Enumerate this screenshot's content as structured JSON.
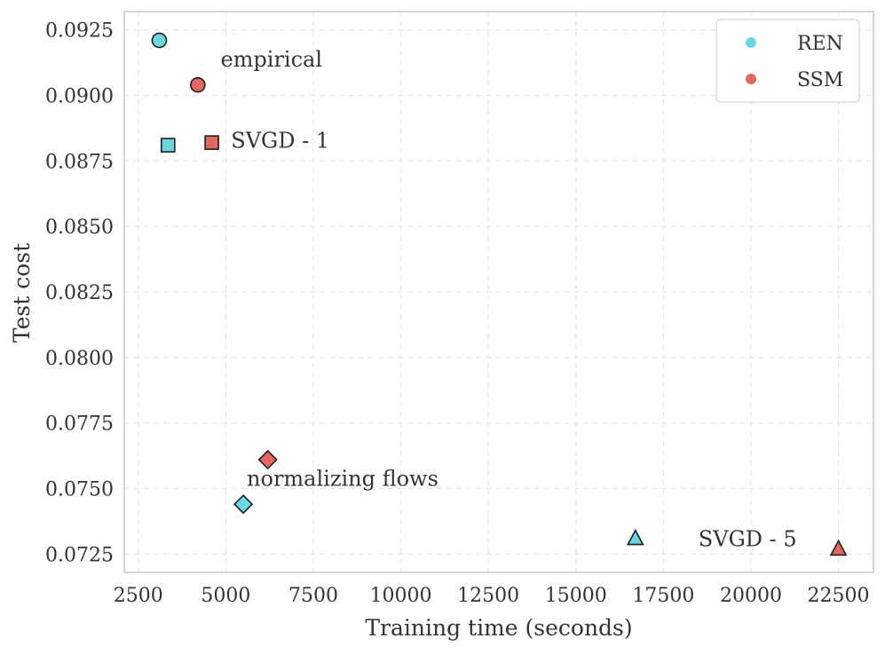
{
  "chart_data": {
    "type": "scatter",
    "xlabel": "Training time (seconds)",
    "ylabel": "Test cost",
    "xlim": [
      2100,
      23500
    ],
    "ylim": [
      0.0718,
      0.0932
    ],
    "grid": true,
    "legend_position": "top-right",
    "x_ticks": [
      {
        "value": 2500,
        "label": "2500"
      },
      {
        "value": 5000,
        "label": "5000"
      },
      {
        "value": 7500,
        "label": "7500"
      },
      {
        "value": 10000,
        "label": "10000"
      },
      {
        "value": 12500,
        "label": "12500"
      },
      {
        "value": 15000,
        "label": "15000"
      },
      {
        "value": 17500,
        "label": "17500"
      },
      {
        "value": 20000,
        "label": "20000"
      },
      {
        "value": 22500,
        "label": "22500"
      }
    ],
    "y_ticks": [
      {
        "value": 0.0725,
        "label": "0.0725"
      },
      {
        "value": 0.075,
        "label": "0.0750"
      },
      {
        "value": 0.0775,
        "label": "0.0775"
      },
      {
        "value": 0.08,
        "label": "0.0800"
      },
      {
        "value": 0.0825,
        "label": "0.0825"
      },
      {
        "value": 0.085,
        "label": "0.0850"
      },
      {
        "value": 0.0875,
        "label": "0.0875"
      },
      {
        "value": 0.09,
        "label": "0.0900"
      },
      {
        "value": 0.0925,
        "label": "0.0925"
      }
    ],
    "series": [
      {
        "name": "REN",
        "color": "#6dd7e0",
        "points": [
          {
            "method": "empirical",
            "marker": "circle",
            "x": 3100,
            "y": 0.0921
          },
          {
            "method": "SVGD - 1",
            "marker": "square",
            "x": 3350,
            "y": 0.0881
          },
          {
            "method": "normalizing flows",
            "marker": "diamond",
            "x": 5500,
            "y": 0.0744
          },
          {
            "method": "SVGD - 5",
            "marker": "triangle",
            "x": 16700,
            "y": 0.0731
          }
        ]
      },
      {
        "name": "SSM",
        "color": "#e0685f",
        "points": [
          {
            "method": "empirical",
            "marker": "circle",
            "x": 4200,
            "y": 0.0904
          },
          {
            "method": "SVGD - 1",
            "marker": "square",
            "x": 4600,
            "y": 0.0882
          },
          {
            "method": "normalizing flows",
            "marker": "diamond",
            "x": 6200,
            "y": 0.0761
          },
          {
            "method": "SVGD - 5",
            "marker": "triangle",
            "x": 22500,
            "y": 0.0727
          }
        ]
      }
    ],
    "annotations": [
      {
        "text": "empirical",
        "x": 4850,
        "y": 0.0911
      },
      {
        "text": "SVGD - 1",
        "x": 5150,
        "y": 0.088
      },
      {
        "text": "normalizing flows",
        "x": 5600,
        "y": 0.0751
      },
      {
        "text": "SVGD - 5",
        "x": 18500,
        "y": 0.0728
      }
    ]
  }
}
